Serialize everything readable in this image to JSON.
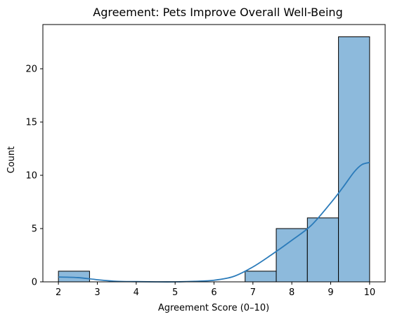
{
  "chart_data": {
    "type": "bar",
    "title": "Agreement: Pets Improve Overall Well-Being",
    "xlabel": "Agreement Score (0–10)",
    "ylabel": "Count",
    "xlim": [
      1.6,
      10.4
    ],
    "ylim": [
      0,
      24.15
    ],
    "x_ticks": [
      2,
      3,
      4,
      5,
      6,
      7,
      8,
      9,
      10
    ],
    "y_ticks": [
      0,
      5,
      10,
      15,
      20
    ],
    "bins": [
      {
        "x0": 2.0,
        "x1": 2.8,
        "count": 1
      },
      {
        "x0": 2.8,
        "x1": 3.6,
        "count": 0
      },
      {
        "x0": 3.6,
        "x1": 4.4,
        "count": 0
      },
      {
        "x0": 4.4,
        "x1": 5.2,
        "count": 0
      },
      {
        "x0": 5.2,
        "x1": 6.0,
        "count": 0
      },
      {
        "x0": 6.0,
        "x1": 6.8,
        "count": 0
      },
      {
        "x0": 6.8,
        "x1": 7.6,
        "count": 1
      },
      {
        "x0": 7.6,
        "x1": 8.4,
        "count": 5
      },
      {
        "x0": 8.4,
        "x1": 9.2,
        "count": 6
      },
      {
        "x0": 9.2,
        "x1": 10.0,
        "count": 23
      }
    ],
    "kde": {
      "x": [
        2.0,
        2.5,
        3.0,
        3.5,
        4.0,
        4.5,
        5.0,
        5.5,
        6.0,
        6.5,
        7.0,
        7.5,
        8.0,
        8.5,
        9.0,
        9.3,
        9.6,
        9.8,
        10.0
      ],
      "y": [
        0.45,
        0.4,
        0.2,
        0.05,
        0.02,
        0.0,
        0.0,
        0.05,
        0.15,
        0.5,
        1.4,
        2.6,
        3.9,
        5.3,
        7.4,
        8.8,
        10.3,
        11.0,
        11.2
      ]
    },
    "grid": false,
    "colors": {
      "bar_fill": "#8dbadc",
      "bar_edge": "#000000",
      "kde_line": "#2b7bba"
    }
  }
}
